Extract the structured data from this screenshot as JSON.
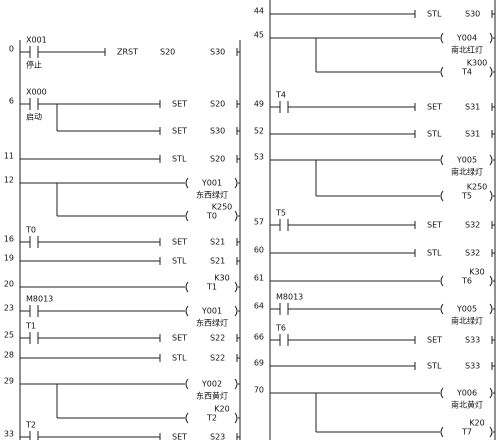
{
  "columns": [
    {
      "rungs": [
        {
          "step": "0",
          "contact": {
            "label": "X001",
            "note": "停止"
          },
          "outputs": [
            {
              "instr": "ZRST",
              "operand": "S20",
              "operand2": "S30"
            }
          ]
        },
        {
          "step": "6",
          "contact": {
            "label": "X000",
            "note": "启动"
          },
          "outputs": [
            {
              "instr": "SET",
              "operand": "S20"
            },
            {
              "instr": "SET",
              "operand": "S30"
            }
          ]
        },
        {
          "step": "11",
          "outputs": [
            {
              "instr": "STL",
              "operand": "S20"
            }
          ]
        },
        {
          "step": "12",
          "outputs": [
            {
              "coil": "Y001",
              "note": "东西绿灯"
            },
            {
              "coil": "T0",
              "preset": "K250"
            }
          ]
        },
        {
          "step": "16",
          "contact": {
            "label": "T0"
          },
          "outputs": [
            {
              "instr": "SET",
              "operand": "S21"
            }
          ]
        },
        {
          "step": "19",
          "outputs": [
            {
              "instr": "STL",
              "operand": "S21"
            }
          ]
        },
        {
          "step": "20",
          "outputs": [
            {
              "coil": "T1",
              "preset": "K30"
            }
          ]
        },
        {
          "step": "23",
          "contact": {
            "label": "M8013"
          },
          "outputs": [
            {
              "coil": "Y001",
              "note": "东西绿灯"
            }
          ]
        },
        {
          "step": "25",
          "contact": {
            "label": "T1"
          },
          "outputs": [
            {
              "instr": "SET",
              "operand": "S22"
            }
          ]
        },
        {
          "step": "28",
          "outputs": [
            {
              "instr": "STL",
              "operand": "S22"
            }
          ]
        },
        {
          "step": "29",
          "outputs": [
            {
              "coil": "Y002",
              "note": "东西黄灯"
            },
            {
              "coil": "T2",
              "preset": "K20"
            }
          ]
        },
        {
          "step": "33",
          "contact": {
            "label": "T2"
          },
          "outputs": [
            {
              "instr": "SET",
              "operand": "S23"
            }
          ]
        }
      ]
    },
    {
      "rungs": [
        {
          "step": "44",
          "outputs": [
            {
              "instr": "STL",
              "operand": "S30"
            }
          ]
        },
        {
          "step": "45",
          "outputs": [
            {
              "coil": "Y004",
              "note": "南北红灯"
            },
            {
              "coil": "T4",
              "preset": "K300"
            }
          ]
        },
        {
          "step": "49",
          "contact": {
            "label": "T4"
          },
          "outputs": [
            {
              "instr": "SET",
              "operand": "S31"
            }
          ]
        },
        {
          "step": "52",
          "outputs": [
            {
              "instr": "STL",
              "operand": "S31"
            }
          ]
        },
        {
          "step": "53",
          "outputs": [
            {
              "coil": "Y005",
              "note": "南北绿灯"
            },
            {
              "coil": "T5",
              "preset": "K250"
            }
          ]
        },
        {
          "step": "57",
          "contact": {
            "label": "T5"
          },
          "outputs": [
            {
              "instr": "SET",
              "operand": "S32"
            }
          ]
        },
        {
          "step": "60",
          "outputs": [
            {
              "instr": "STL",
              "operand": "S32"
            }
          ]
        },
        {
          "step": "61",
          "outputs": [
            {
              "coil": "T6",
              "preset": "K30"
            }
          ]
        },
        {
          "step": "64",
          "contact": {
            "label": "M8013"
          },
          "outputs": [
            {
              "coil": "Y005",
              "note": "南北绿灯"
            }
          ]
        },
        {
          "step": "66",
          "contact": {
            "label": "T6"
          },
          "outputs": [
            {
              "instr": "SET",
              "operand": "S33"
            }
          ]
        },
        {
          "step": "69",
          "outputs": [
            {
              "instr": "STL",
              "operand": "S33"
            }
          ]
        },
        {
          "step": "70",
          "outputs": [
            {
              "coil": "Y006",
              "note": "南北黄灯"
            },
            {
              "coil": "T7",
              "preset": "K20"
            }
          ]
        }
      ]
    }
  ]
}
